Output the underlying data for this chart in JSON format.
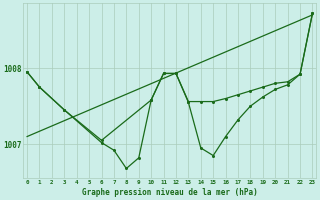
{
  "bg_color": "#cceee8",
  "grid_color": "#aaccbb",
  "line_color": "#1a6b1a",
  "x_ticks": [
    0,
    1,
    2,
    3,
    4,
    5,
    6,
    7,
    8,
    9,
    10,
    11,
    12,
    13,
    14,
    15,
    16,
    17,
    18,
    19,
    20,
    21,
    22,
    23
  ],
  "y_ticks": [
    1007,
    1008
  ],
  "xlabel": "Graphe pression niveau de la mer (hPa)",
  "ylim": [
    1006.55,
    1008.85
  ],
  "xlim": [
    -0.3,
    23.3
  ],
  "series1_straight": {
    "x": [
      0,
      23
    ],
    "y": [
      1007.1,
      1008.7
    ]
  },
  "series2_wavy": {
    "x": [
      0,
      1,
      3,
      6,
      7,
      8,
      9,
      10,
      11,
      12,
      13,
      14,
      15,
      16,
      17,
      18,
      19,
      20,
      21,
      22,
      23
    ],
    "y": [
      1007.95,
      1007.75,
      1007.45,
      1007.02,
      1006.92,
      1006.68,
      1006.82,
      1007.58,
      1007.93,
      1007.93,
      1007.55,
      1006.95,
      1006.85,
      1007.1,
      1007.32,
      1007.5,
      1007.62,
      1007.72,
      1007.78,
      1007.92,
      1008.72
    ]
  },
  "series3_top": {
    "x": [
      0,
      1,
      3,
      6,
      10,
      11,
      12,
      13,
      14,
      15,
      16,
      17,
      18,
      19,
      20,
      21,
      22,
      23
    ],
    "y": [
      1007.95,
      1007.75,
      1007.45,
      1007.05,
      1007.58,
      1007.93,
      1007.93,
      1007.56,
      1007.56,
      1007.56,
      1007.6,
      1007.65,
      1007.7,
      1007.75,
      1007.8,
      1007.82,
      1007.92,
      1008.72
    ]
  }
}
